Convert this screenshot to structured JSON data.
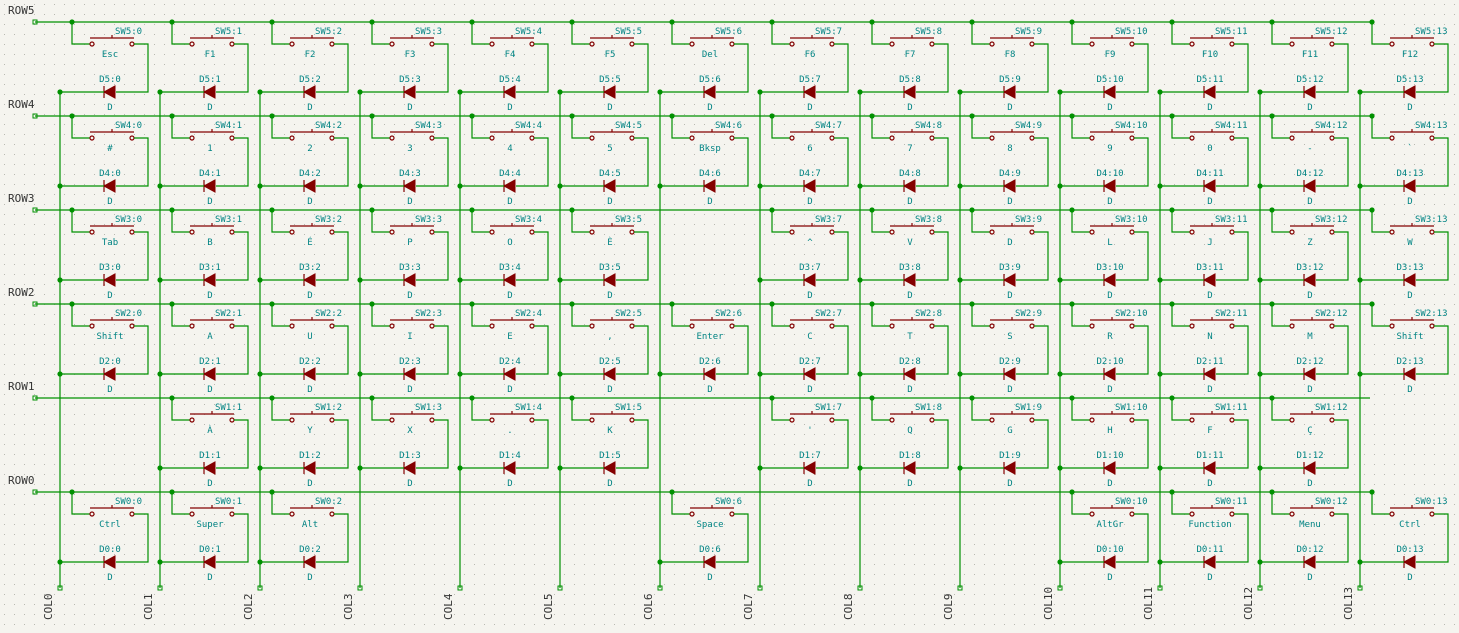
{
  "columns": [
    "COL0",
    "COL1",
    "COL2",
    "COL3",
    "COL4",
    "COL5",
    "COL6",
    "COL7",
    "COL8",
    "COL9",
    "COL10",
    "COL11",
    "COL12",
    "COL13"
  ],
  "rows": [
    {
      "label": "ROW5",
      "cells": [
        {
          "switch": "SW5:0",
          "key": "Esc",
          "diode": "D5:0",
          "value": "D"
        },
        {
          "switch": "SW5:1",
          "key": "F1",
          "diode": "D5:1",
          "value": "D"
        },
        {
          "switch": "SW5:2",
          "key": "F2",
          "diode": "D5:2",
          "value": "D"
        },
        {
          "switch": "SW5:3",
          "key": "F3",
          "diode": "D5:3",
          "value": "D"
        },
        {
          "switch": "SW5:4",
          "key": "F4",
          "diode": "D5:4",
          "value": "D"
        },
        {
          "switch": "SW5:5",
          "key": "F5",
          "diode": "D5:5",
          "value": "D"
        },
        {
          "switch": "SW5:6",
          "key": "Del",
          "diode": "D5:6",
          "value": "D"
        },
        {
          "switch": "SW5:7",
          "key": "F6",
          "diode": "D5:7",
          "value": "D"
        },
        {
          "switch": "SW5:8",
          "key": "F7",
          "diode": "D5:8",
          "value": "D"
        },
        {
          "switch": "SW5:9",
          "key": "F8",
          "diode": "D5:9",
          "value": "D"
        },
        {
          "switch": "SW5:10",
          "key": "F9",
          "diode": "D5:10",
          "value": "D"
        },
        {
          "switch": "SW5:11",
          "key": "F10",
          "diode": "D5:11",
          "value": "D"
        },
        {
          "switch": "SW5:12",
          "key": "F11",
          "diode": "D5:12",
          "value": "D"
        },
        {
          "switch": "SW5:13",
          "key": "F12",
          "diode": "D5:13",
          "value": "D"
        }
      ]
    },
    {
      "label": "ROW4",
      "cells": [
        {
          "switch": "SW4:0",
          "key": "#",
          "diode": "D4:0",
          "value": "D"
        },
        {
          "switch": "SW4:1",
          "key": "1",
          "diode": "D4:1",
          "value": "D"
        },
        {
          "switch": "SW4:2",
          "key": "2",
          "diode": "D4:2",
          "value": "D"
        },
        {
          "switch": "SW4:3",
          "key": "3",
          "diode": "D4:3",
          "value": "D"
        },
        {
          "switch": "SW4:4",
          "key": "4",
          "diode": "D4:4",
          "value": "D"
        },
        {
          "switch": "SW4:5",
          "key": "5",
          "diode": "D4:5",
          "value": "D"
        },
        {
          "switch": "SW4:6",
          "key": "Bksp",
          "diode": "D4:6",
          "value": "D"
        },
        {
          "switch": "SW4:7",
          "key": "6",
          "diode": "D4:7",
          "value": "D"
        },
        {
          "switch": "SW4:8",
          "key": "7",
          "diode": "D4:8",
          "value": "D"
        },
        {
          "switch": "SW4:9",
          "key": "8",
          "diode": "D4:9",
          "value": "D"
        },
        {
          "switch": "SW4:10",
          "key": "9",
          "diode": "D4:10",
          "value": "D"
        },
        {
          "switch": "SW4:11",
          "key": "0",
          "diode": "D4:11",
          "value": "D"
        },
        {
          "switch": "SW4:12",
          "key": "-",
          "diode": "D4:12",
          "value": "D"
        },
        {
          "switch": "SW4:13",
          "key": "`",
          "diode": "D4:13",
          "value": "D"
        }
      ]
    },
    {
      "label": "ROW3",
      "cells": [
        {
          "switch": "SW3:0",
          "key": "Tab",
          "diode": "D3:0",
          "value": "D"
        },
        {
          "switch": "SW3:1",
          "key": "B",
          "diode": "D3:1",
          "value": "D"
        },
        {
          "switch": "SW3:2",
          "key": "É",
          "diode": "D3:2",
          "value": "D"
        },
        {
          "switch": "SW3:3",
          "key": "P",
          "diode": "D3:3",
          "value": "D"
        },
        {
          "switch": "SW3:4",
          "key": "O",
          "diode": "D3:4",
          "value": "D"
        },
        {
          "switch": "SW3:5",
          "key": "È",
          "diode": "D3:5",
          "value": "D"
        },
        null,
        {
          "switch": "SW3:7",
          "key": "^",
          "diode": "D3:7",
          "value": "D"
        },
        {
          "switch": "SW3:8",
          "key": "V",
          "diode": "D3:8",
          "value": "D"
        },
        {
          "switch": "SW3:9",
          "key": "D",
          "diode": "D3:9",
          "value": "D"
        },
        {
          "switch": "SW3:10",
          "key": "L",
          "diode": "D3:10",
          "value": "D"
        },
        {
          "switch": "SW3:11",
          "key": "J",
          "diode": "D3:11",
          "value": "D"
        },
        {
          "switch": "SW3:12",
          "key": "Z",
          "diode": "D3:12",
          "value": "D"
        },
        {
          "switch": "SW3:13",
          "key": "W",
          "diode": "D3:13",
          "value": "D"
        }
      ]
    },
    {
      "label": "ROW2",
      "cells": [
        {
          "switch": "SW2:0",
          "key": "Shift",
          "diode": "D2:0",
          "value": "D"
        },
        {
          "switch": "SW2:1",
          "key": "A",
          "diode": "D2:1",
          "value": "D"
        },
        {
          "switch": "SW2:2",
          "key": "U",
          "diode": "D2:2",
          "value": "D"
        },
        {
          "switch": "SW2:3",
          "key": "I",
          "diode": "D2:3",
          "value": "D"
        },
        {
          "switch": "SW2:4",
          "key": "E",
          "diode": "D2:4",
          "value": "D"
        },
        {
          "switch": "SW2:5",
          "key": ",",
          "diode": "D2:5",
          "value": "D"
        },
        {
          "switch": "SW2:6",
          "key": "Enter",
          "diode": "D2:6",
          "value": "D"
        },
        {
          "switch": "SW2:7",
          "key": "C",
          "diode": "D2:7",
          "value": "D"
        },
        {
          "switch": "SW2:8",
          "key": "T",
          "diode": "D2:8",
          "value": "D"
        },
        {
          "switch": "SW2:9",
          "key": "S",
          "diode": "D2:9",
          "value": "D"
        },
        {
          "switch": "SW2:10",
          "key": "R",
          "diode": "D2:10",
          "value": "D"
        },
        {
          "switch": "SW2:11",
          "key": "N",
          "diode": "D2:11",
          "value": "D"
        },
        {
          "switch": "SW2:12",
          "key": "M",
          "diode": "D2:12",
          "value": "D"
        },
        {
          "switch": "SW2:13",
          "key": "Shift",
          "diode": "D2:13",
          "value": "D"
        }
      ]
    },
    {
      "label": "ROW1",
      "cells": [
        null,
        {
          "switch": "SW1:1",
          "key": "À",
          "diode": "D1:1",
          "value": "D"
        },
        {
          "switch": "SW1:2",
          "key": "Y",
          "diode": "D1:2",
          "value": "D"
        },
        {
          "switch": "SW1:3",
          "key": "X",
          "diode": "D1:3",
          "value": "D"
        },
        {
          "switch": "SW1:4",
          "key": ".",
          "diode": "D1:4",
          "value": "D"
        },
        {
          "switch": "SW1:5",
          "key": "K",
          "diode": "D1:5",
          "value": "D"
        },
        null,
        {
          "switch": "SW1:7",
          "key": "'",
          "diode": "D1:7",
          "value": "D"
        },
        {
          "switch": "SW1:8",
          "key": "Q",
          "diode": "D1:8",
          "value": "D"
        },
        {
          "switch": "SW1:9",
          "key": "G",
          "diode": "D1:9",
          "value": "D"
        },
        {
          "switch": "SW1:10",
          "key": "H",
          "diode": "D1:10",
          "value": "D"
        },
        {
          "switch": "SW1:11",
          "key": "F",
          "diode": "D1:11",
          "value": "D"
        },
        {
          "switch": "SW1:12",
          "key": "Ç",
          "diode": "D1:12",
          "value": "D"
        },
        null
      ]
    },
    {
      "label": "ROW0",
      "cells": [
        {
          "switch": "SW0:0",
          "key": "Ctrl",
          "diode": "D0:0",
          "value": "D"
        },
        {
          "switch": "SW0:1",
          "key": "Super",
          "diode": "D0:1",
          "value": "D"
        },
        {
          "switch": "SW0:2",
          "key": "Alt",
          "diode": "D0:2",
          "value": "D"
        },
        null,
        null,
        null,
        {
          "switch": "SW0:6",
          "key": "Space",
          "diode": "D0:6",
          "value": "D"
        },
        null,
        null,
        null,
        {
          "switch": "SW0:10",
          "key": "AltGr",
          "diode": "D0:10",
          "value": "D"
        },
        {
          "switch": "SW0:11",
          "key": "Function",
          "diode": "D0:11",
          "value": "D"
        },
        {
          "switch": "SW0:12",
          "key": "Menu",
          "diode": "D0:12",
          "value": "D"
        },
        {
          "switch": "SW0:13",
          "key": "Ctrl",
          "diode": "D0:13",
          "value": "D"
        }
      ]
    }
  ]
}
